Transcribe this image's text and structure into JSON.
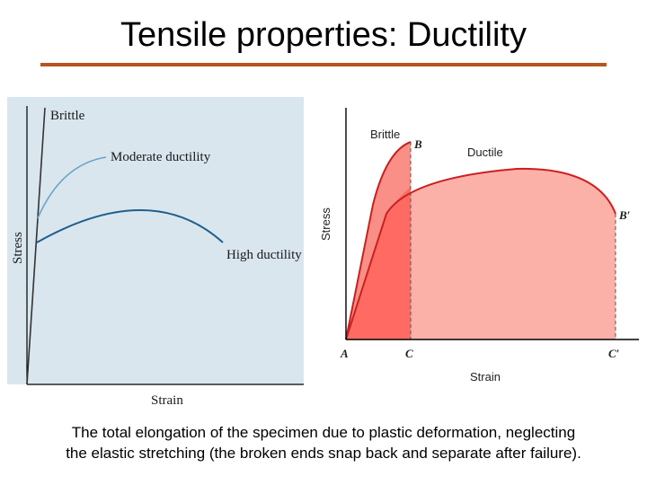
{
  "slide": {
    "title": "Tensile properties: Ductility",
    "caption_line1": "The total elongation of the specimen due to plastic deformation, neglecting",
    "caption_line2": "the elastic stretching (the broken ends snap back and separate after failure)."
  },
  "left_diagram": {
    "x_label": "Strain",
    "y_label": "Stress",
    "curves": {
      "brittle": "Brittle",
      "moderate": "Moderate ductility",
      "high": "High ductility"
    },
    "colors": {
      "background": "#d9e6ee",
      "curve": "#1f5f8b",
      "moderate_curve": "#6aa3c7",
      "axis": "#000000"
    }
  },
  "right_diagram": {
    "x_label": "Strain",
    "y_label": "Stress",
    "curve_labels": {
      "brittle": "Brittle",
      "ductile": "Ductile"
    },
    "points": {
      "origin": "A",
      "brittle_fracture": "B",
      "ductile_fracture": "B′",
      "brittle_strain": "C",
      "ductile_strain": "C′"
    },
    "colors": {
      "brittle_fill": "#ff6b62",
      "ductile_fill": "#fbb0a8",
      "overlap_fill": "#f98f86",
      "edge": "#cc1f1f"
    }
  }
}
